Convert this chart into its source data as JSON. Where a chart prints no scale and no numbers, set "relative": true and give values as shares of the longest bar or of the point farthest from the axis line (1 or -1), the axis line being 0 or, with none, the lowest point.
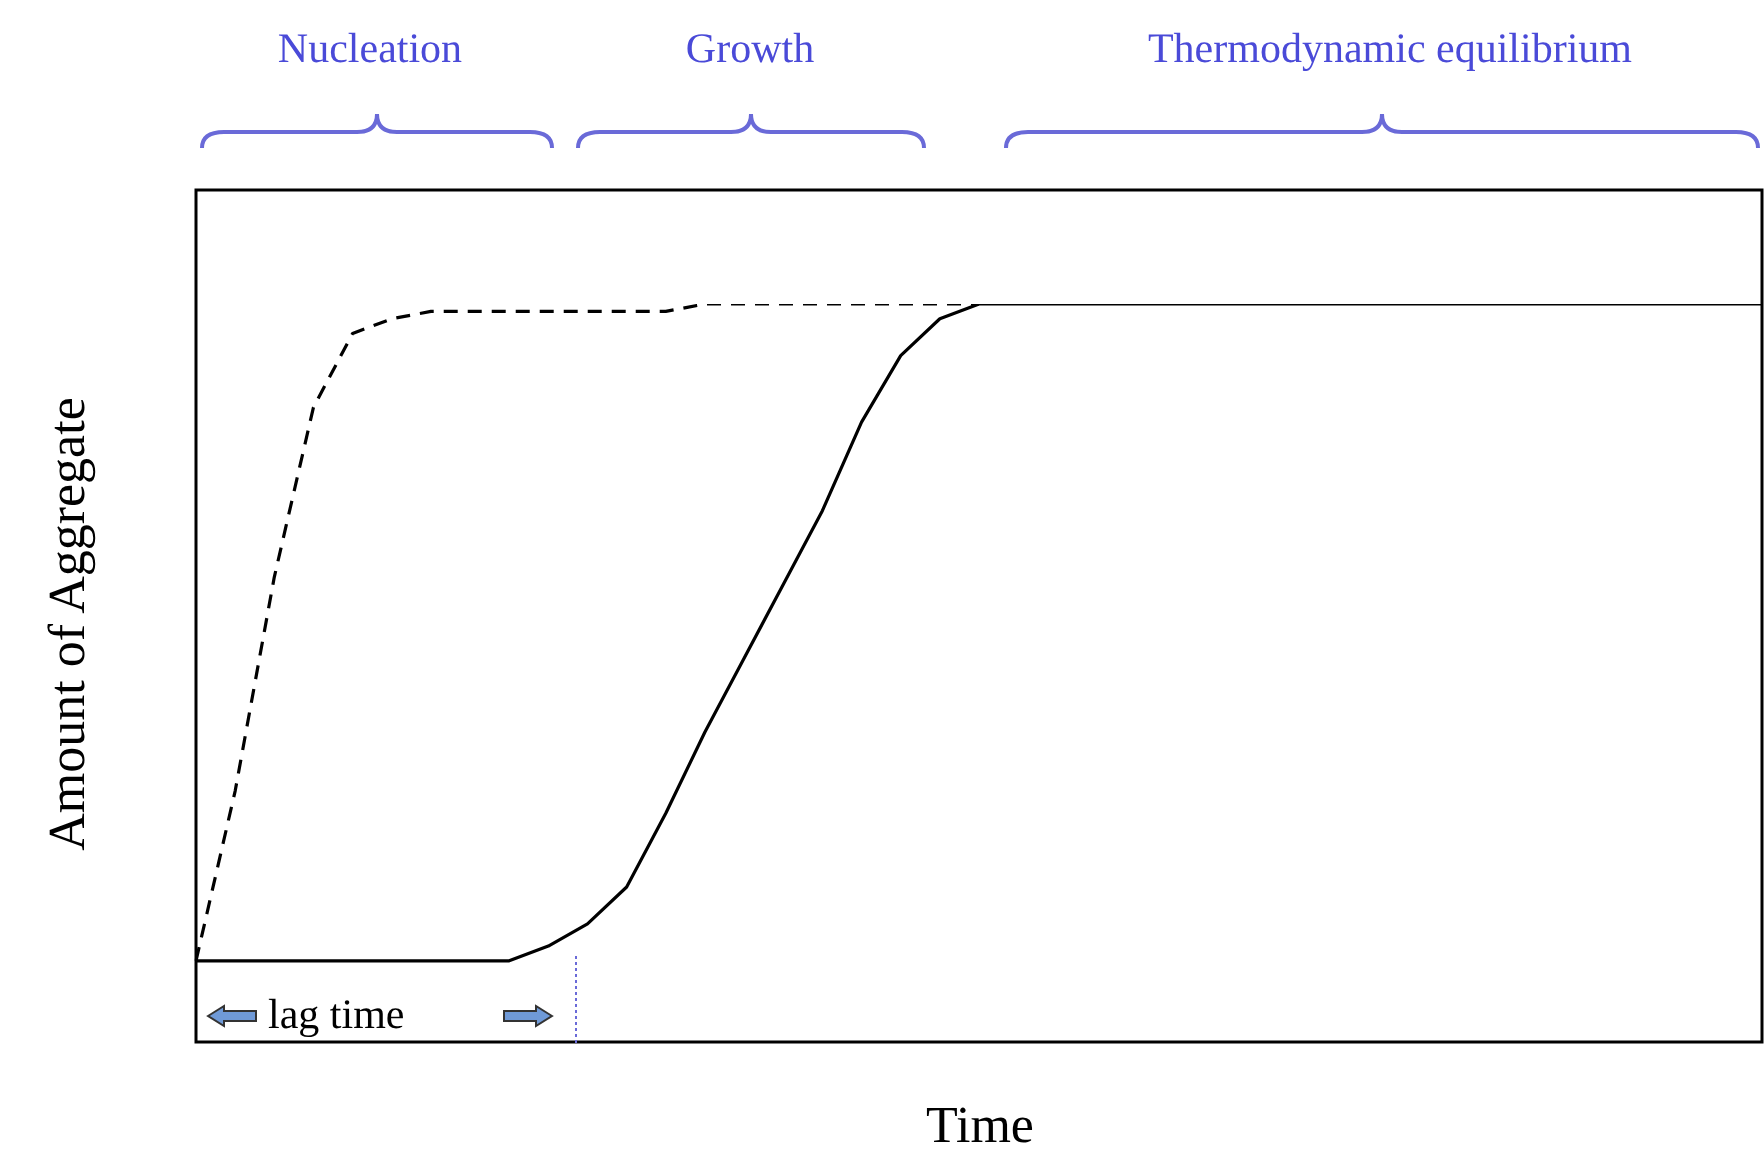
{
  "chart_data": {
    "type": "line",
    "relative": true,
    "xlabel": "Time",
    "ylabel": "Amount of Aggregate",
    "categories": [
      null,
      null,
      null,
      null,
      null,
      null,
      null,
      null,
      null,
      null,
      null,
      null,
      null,
      null,
      null,
      null,
      null,
      null,
      null,
      null,
      null,
      null,
      null,
      null,
      null,
      null,
      null,
      null,
      null,
      null,
      null,
      null,
      null,
      null,
      null,
      null,
      null,
      null,
      null,
      null,
      null
    ],
    "series": [
      {
        "color": "#000000",
        "line_style": "solid",
        "values": [
          0.11,
          0.11,
          0.11,
          0.11,
          0.11,
          0.11,
          0.11,
          0.11,
          0.11,
          0.13,
          0.16,
          0.21,
          0.31,
          0.42,
          0.52,
          0.62,
          0.72,
          0.84,
          0.93,
          0.98,
          1,
          1,
          1,
          1,
          1,
          1,
          1,
          1,
          1,
          1,
          1,
          1,
          1,
          1,
          1,
          1,
          1,
          1,
          1,
          1,
          1
        ]
      },
      {
        "color": "#000000",
        "line_style": "dashed",
        "values": [
          0.11,
          0.34,
          0.63,
          0.86,
          0.96,
          0.98,
          0.99,
          0.99,
          0.99,
          0.99,
          0.99,
          0.99,
          0.99,
          1,
          1,
          1,
          1,
          1,
          1,
          1,
          1,
          null,
          null,
          null,
          null,
          null,
          null,
          null,
          null,
          null,
          null,
          null,
          null,
          null,
          null,
          null,
          null,
          null,
          null,
          null,
          null
        ]
      }
    ],
    "annotations": [
      "Nucleation",
      "Growth",
      "Thermodynamic equilibrium",
      "lag time"
    ]
  }
}
